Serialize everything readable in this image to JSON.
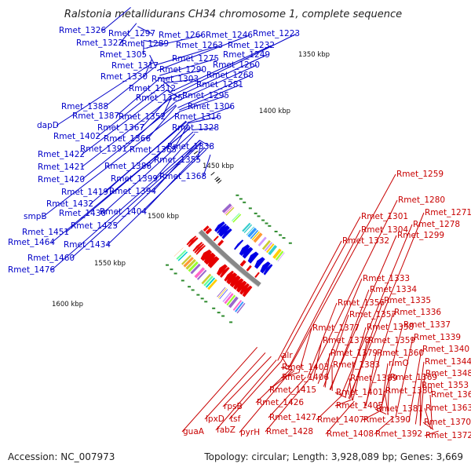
{
  "title": "Ralstonia metallidurans CH34 chromosome 1, complete sequence",
  "footer": {
    "accession": "Accession: NC_007973",
    "summary": "Topology: circular; Length: 3,928,089 bp; Genes: 3,669"
  },
  "colors": {
    "forward_genes": "#0000e6",
    "reverse_genes": "#e60000",
    "backbone": "#888888",
    "tick_marks": "#2e8b2e"
  },
  "kbp_ticks": [
    "1350 kbp",
    "1400 kbp",
    "1450 kbp",
    "1500 kbp",
    "1550 kbp",
    "1600 kbp"
  ],
  "blue_labels": [
    "Rmet_1326",
    "Rmet_1297",
    "Rmet_1266",
    "Rmet_1246",
    "Rmet_1223",
    "Rmet_1322",
    "Rmet_1289",
    "Rmet_1263",
    "Rmet_1232",
    "Rmet_1305",
    "Rmet_1275",
    "Rmet_1249",
    "Rmet_1317",
    "Rmet_1290",
    "Rmet_1260",
    "Rmet_1330",
    "Rmet_1303",
    "Rmet_1268",
    "Rmet_1312",
    "Rmet_1281",
    "Rmet_1325",
    "Rmet_1295",
    "Rmet_1388",
    "Rmet_1306",
    "Rmet_1387",
    "Rmet_1352",
    "Rmet_1316",
    "dapD",
    "Rmet_1367",
    "Rmet_1328",
    "Rmet_1402",
    "Rmet_1366",
    "Rmet_1391",
    "Rmet_1365",
    "Rmet_1338",
    "Rmet_1422",
    "Rmet_1355",
    "Rmet_1421",
    "Rmet_1386",
    "Rmet_1420",
    "Rmet_1399",
    "Rmet_1368",
    "Rmet_1419",
    "Rmet_1394",
    "Rmet_1432",
    "smpB",
    "Rmet_1430",
    "Rmet_1404",
    "Rmet_1425",
    "Rmet_1451",
    "Rmet_1464",
    "Rmet_1434",
    "Rmet_1460",
    "Rmet_1476"
  ],
  "red_labels": [
    "Rmet_1259",
    "Rmet_1280",
    "Rmet_1271",
    "Rmet_1301",
    "Rmet_1278",
    "Rmet_1304",
    "Rmet_1299",
    "Rmet_1332",
    "Rmet_1333",
    "Rmet_1334",
    "Rmet_1356",
    "Rmet_1335",
    "Rmet_1357",
    "Rmet_1336",
    "Rmet_1377",
    "Rmet_1358",
    "Rmet_1337",
    "Rmet_1378",
    "Rmet_1359",
    "Rmet_1339",
    "Rmet_1379",
    "Rmet_1360",
    "Rmet_1340",
    "alr",
    "Rmet_1383",
    "rimO",
    "Rmet_1344",
    "Rmet_1403",
    "Rmet_1348",
    "Rmet_1406",
    "Rmet_1389",
    "Rmet_1369",
    "Rmet_1353",
    "Rmet_1415",
    "Rmet_1401",
    "Rmet_1380",
    "Rmet_1362",
    "Rmet_1426",
    "Rmet_1405",
    "Rmet_1381",
    "Rmet_1363",
    "rpsB",
    "Rmet_1427",
    "Rmet_1407",
    "Rmet_1390",
    "Rmet_1370",
    "lpxD",
    "tsf",
    "fabZ",
    "pyrH",
    "Rmet_1428",
    "Rmet_1408",
    "Rmet_1392",
    "Rmet_1372",
    "guaA"
  ]
}
